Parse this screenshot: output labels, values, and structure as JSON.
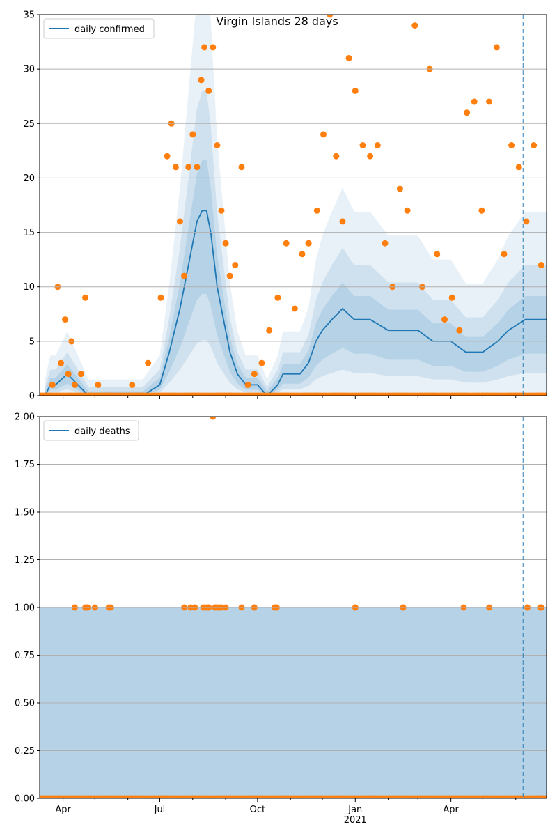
{
  "title": "Virgin Islands 28 days",
  "colors": {
    "line": "#1f77b4",
    "points": "#ff7f0e",
    "band": "#1f77b4",
    "grid": "#b0b0b0",
    "vline": "#1f77b4"
  },
  "chart_data": [
    {
      "type": "line",
      "title": "Virgin Islands 28 days",
      "series": [
        {
          "name": "daily confirmed",
          "x": [
            "2020-03-15",
            "2020-03-20",
            "2020-03-25",
            "2020-04-05",
            "2020-04-15",
            "2020-04-25",
            "2020-05-05",
            "2020-05-15",
            "2020-06-01",
            "2020-06-15",
            "2020-07-01",
            "2020-07-10",
            "2020-07-20",
            "2020-07-28",
            "2020-08-05",
            "2020-08-10",
            "2020-08-14",
            "2020-08-18",
            "2020-08-24",
            "2020-08-30",
            "2020-09-05",
            "2020-09-12",
            "2020-09-20",
            "2020-10-01",
            "2020-10-10",
            "2020-10-20",
            "2020-10-25",
            "2020-11-01",
            "2020-11-10",
            "2020-11-18",
            "2020-11-25",
            "2020-12-01",
            "2020-12-10",
            "2020-12-20",
            "2020-12-31",
            "2021-01-15",
            "2021-02-01",
            "2021-02-15",
            "2021-03-01",
            "2021-03-15",
            "2021-04-01",
            "2021-04-15",
            "2021-05-01",
            "2021-05-15",
            "2021-05-25",
            "2021-06-10",
            "2021-06-30"
          ],
          "y": [
            0,
            1,
            1,
            2,
            1,
            0,
            0,
            0,
            0,
            0,
            1,
            4,
            8,
            12,
            16,
            17,
            17,
            15,
            10,
            7,
            4,
            2,
            1,
            1,
            0,
            1,
            2,
            2,
            2,
            3,
            5,
            6,
            7,
            8,
            7,
            7,
            6,
            6,
            6,
            5,
            5,
            4,
            4,
            5,
            6,
            7,
            7
          ]
        }
      ],
      "points_x": [
        "2020-03-22",
        "2020-03-27",
        "2020-03-30",
        "2020-04-03",
        "2020-04-06",
        "2020-04-09",
        "2020-04-12",
        "2020-04-18",
        "2020-04-22",
        "2020-04-27",
        "2020-05-04",
        "2020-05-10",
        "2020-06-05",
        "2020-06-12",
        "2020-06-20",
        "2020-07-02",
        "2020-07-08",
        "2020-07-12",
        "2020-07-16",
        "2020-07-20",
        "2020-07-24",
        "2020-07-28",
        "2020-08-01",
        "2020-08-05",
        "2020-08-09",
        "2020-08-12",
        "2020-08-16",
        "2020-08-20",
        "2020-08-24",
        "2020-08-28",
        "2020-09-01",
        "2020-09-05",
        "2020-09-10",
        "2020-09-16",
        "2020-09-22",
        "2020-09-28",
        "2020-10-05",
        "2020-10-12",
        "2020-10-20",
        "2020-10-28",
        "2020-11-05",
        "2020-11-12",
        "2020-11-18",
        "2020-11-26",
        "2020-12-02",
        "2020-12-08",
        "2020-12-14",
        "2020-12-20",
        "2020-12-26",
        "2021-01-01",
        "2021-01-08",
        "2021-01-15",
        "2021-01-22",
        "2021-01-29",
        "2021-02-05",
        "2021-02-12",
        "2021-02-19",
        "2021-02-26",
        "2021-03-05",
        "2021-03-12",
        "2021-03-19",
        "2021-03-26",
        "2021-04-02",
        "2021-04-09",
        "2021-04-16",
        "2021-04-23",
        "2021-04-30",
        "2021-05-07",
        "2021-05-14",
        "2021-05-21",
        "2021-05-28",
        "2021-06-04",
        "2021-06-11",
        "2021-06-18",
        "2021-06-25"
      ],
      "points_y": [
        1,
        10,
        3,
        7,
        2,
        5,
        1,
        2,
        9,
        0,
        1,
        0,
        1,
        0,
        3,
        9,
        22,
        25,
        21,
        16,
        11,
        21,
        24,
        21,
        29,
        32,
        28,
        32,
        23,
        17,
        14,
        11,
        12,
        21,
        1,
        2,
        3,
        6,
        9,
        14,
        8,
        13,
        14,
        17,
        24,
        35,
        22,
        16,
        31,
        28,
        23,
        22,
        23,
        14,
        10,
        19,
        17,
        34,
        10,
        30,
        13,
        7,
        9,
        6,
        26,
        27,
        17,
        27,
        32,
        13,
        23,
        21,
        16,
        23,
        12
      ],
      "xticks": [
        "Apr",
        "Jul",
        "Oct",
        "Jan\n2021",
        "Apr"
      ],
      "yticks": [
        "0",
        "5",
        "10",
        "15",
        "20",
        "25",
        "30",
        "35"
      ],
      "ylim": [
        0,
        35
      ],
      "xlim": [
        "2020-03-10",
        "2021-06-30"
      ],
      "vline_x": "2021-06-08",
      "legend": "upper left",
      "grid": "y"
    },
    {
      "type": "line",
      "series": [
        {
          "name": "daily deaths",
          "x": [
            "2020-03-10",
            "2021-06-30"
          ],
          "y": [
            0,
            0
          ]
        }
      ],
      "points_x": [
        "2020-04-12",
        "2020-04-22",
        "2020-04-24",
        "2020-05-01",
        "2020-05-14",
        "2020-05-16",
        "2020-07-24",
        "2020-07-30",
        "2020-08-03",
        "2020-08-11",
        "2020-08-14",
        "2020-08-16",
        "2020-08-20",
        "2020-08-22",
        "2020-08-24",
        "2020-08-26",
        "2020-08-28",
        "2020-09-01",
        "2020-09-16",
        "2020-09-28",
        "2020-10-17",
        "2020-10-19",
        "2021-01-01",
        "2021-02-15",
        "2021-04-13",
        "2021-05-07",
        "2021-06-12",
        "2021-06-24",
        "2021-06-25"
      ],
      "points_y": [
        1,
        1,
        1,
        1,
        1,
        1,
        1,
        1,
        1,
        1,
        1,
        1,
        2,
        1,
        1,
        1,
        1,
        1,
        1,
        1,
        1,
        1,
        1,
        1,
        1,
        1,
        1,
        1,
        1
      ],
      "xticks": [
        "Apr",
        "Jul",
        "Oct",
        "Jan\n2021",
        "Apr"
      ],
      "yticks": [
        "0.00",
        "0.25",
        "0.50",
        "0.75",
        "1.00",
        "1.25",
        "1.50",
        "1.75",
        "2.00"
      ],
      "ylim": [
        0,
        2
      ],
      "xlim": [
        "2020-03-10",
        "2021-06-30"
      ],
      "vline_x": "2021-06-08",
      "legend": "upper left",
      "grid": "y"
    }
  ]
}
